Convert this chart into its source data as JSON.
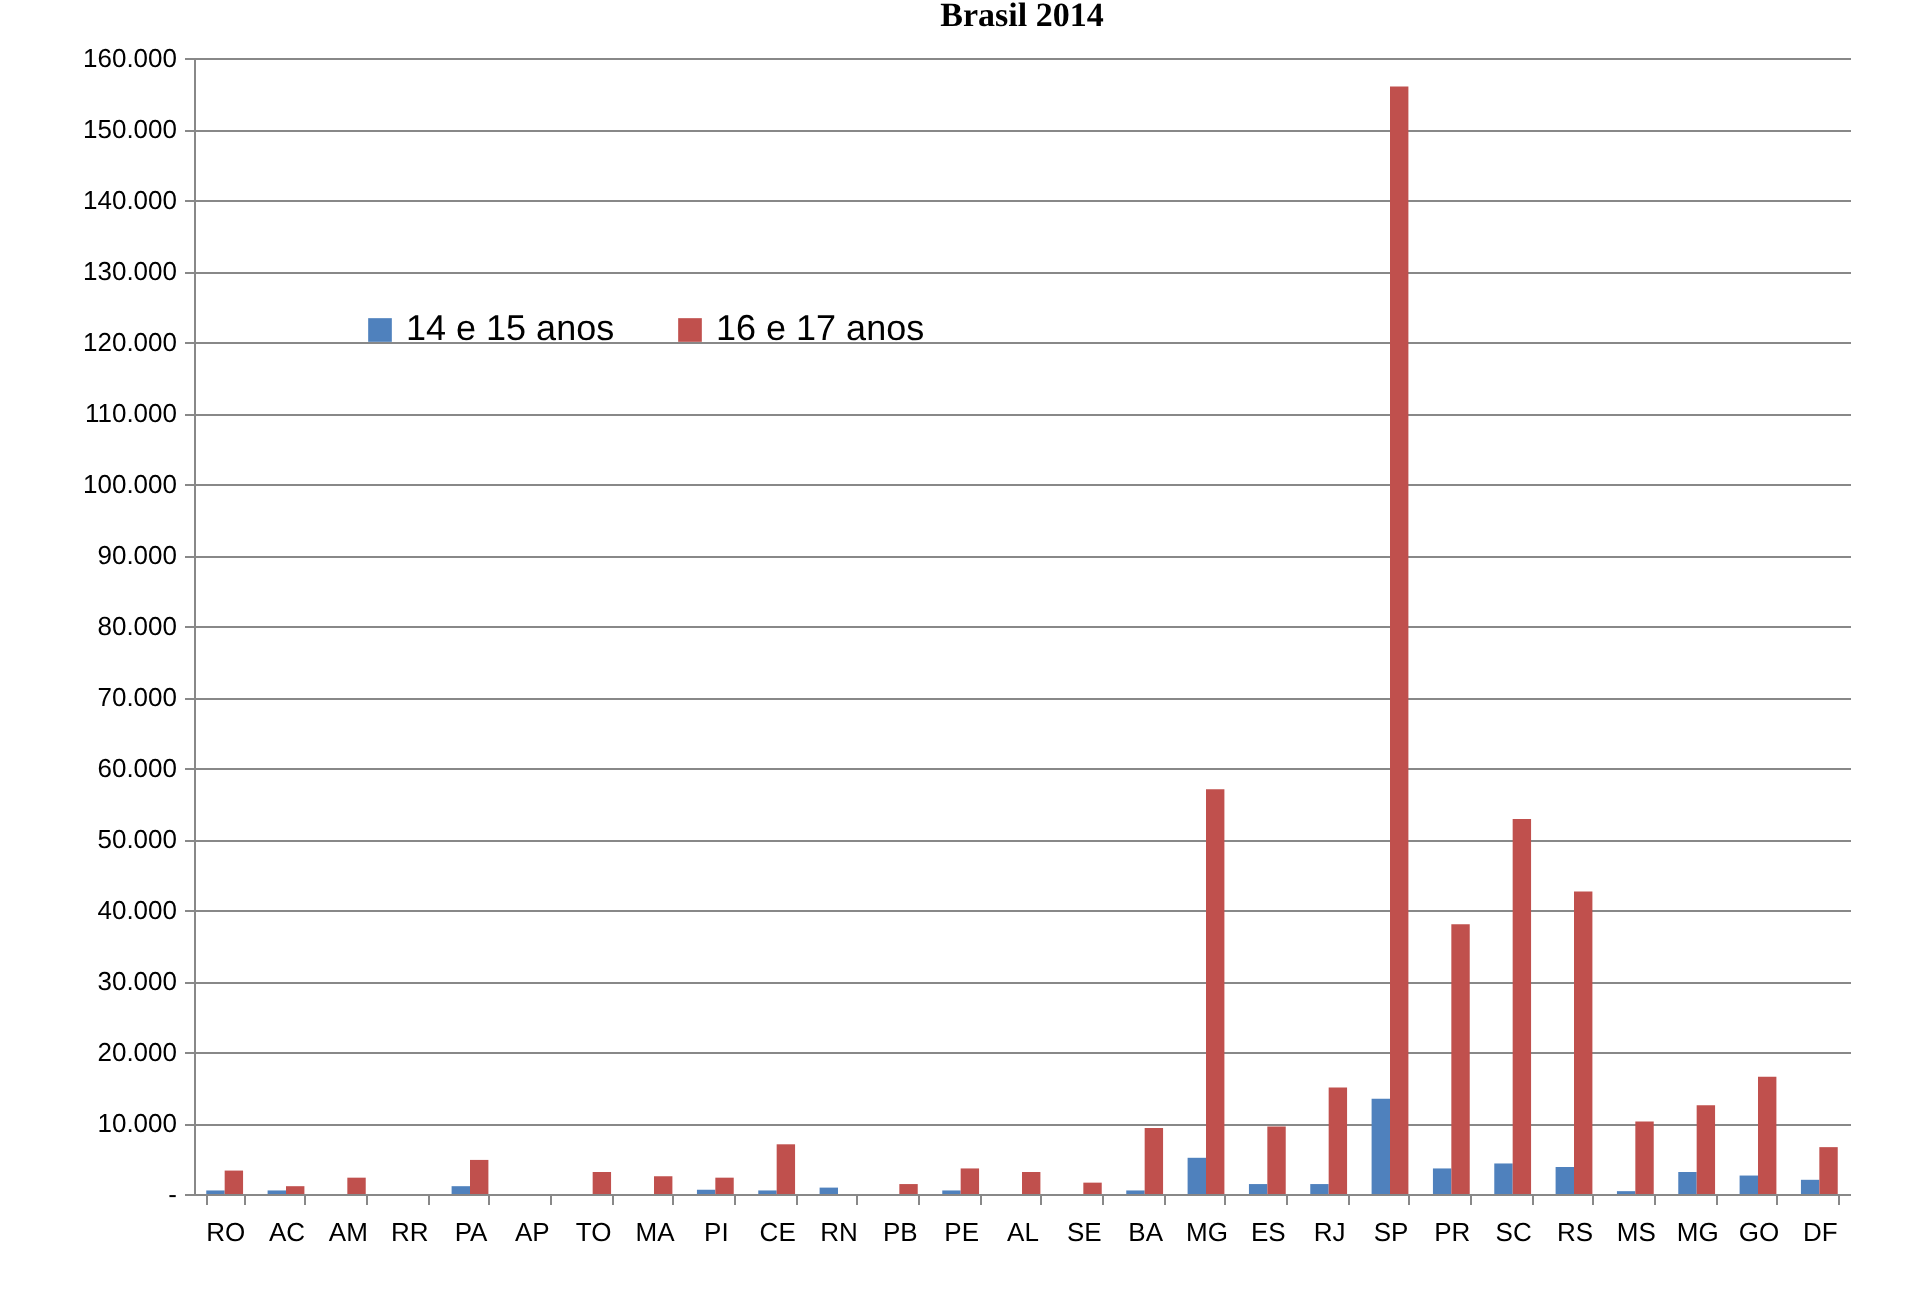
{
  "chart_data": {
    "type": "bar",
    "title": "Brasil 2014",
    "categories": [
      "RO",
      "AC",
      "AM",
      "RR",
      "PA",
      "AP",
      "TO",
      "MA",
      "PI",
      "CE",
      "RN",
      "PB",
      "PE",
      "AL",
      "SE",
      "BA",
      "MG",
      "ES",
      "RJ",
      "SP",
      "PR",
      "SC",
      "RS",
      "MS",
      "MG",
      "GO",
      "DF"
    ],
    "series": [
      {
        "name": "14 e 15 anos",
        "color": "#4f81bd",
        "values": [
          500,
          500,
          0,
          0,
          1100,
          0,
          0,
          0,
          600,
          500,
          900,
          0,
          500,
          0,
          0,
          500,
          5100,
          1400,
          1400,
          13400,
          3600,
          4300,
          3800,
          400,
          3100,
          2600,
          2000
        ]
      },
      {
        "name": "16 e 17 anos",
        "color": "#c0504d",
        "values": [
          3300,
          1100,
          2300,
          0,
          4800,
          0,
          3100,
          2500,
          2300,
          7000,
          0,
          1400,
          3600,
          3100,
          1600,
          9300,
          57000,
          9500,
          15000,
          156000,
          38000,
          52800,
          42600,
          10200,
          12500,
          16500,
          6600
        ]
      }
    ],
    "ylim": [
      0,
      160000
    ],
    "yticks": [
      {
        "value": 0,
        "label": "-"
      },
      {
        "value": 10000,
        "label": "10.000"
      },
      {
        "value": 20000,
        "label": "20.000"
      },
      {
        "value": 30000,
        "label": "30.000"
      },
      {
        "value": 40000,
        "label": "40.000"
      },
      {
        "value": 50000,
        "label": "50.000"
      },
      {
        "value": 60000,
        "label": "60.000"
      },
      {
        "value": 70000,
        "label": "70.000"
      },
      {
        "value": 80000,
        "label": "80.000"
      },
      {
        "value": 90000,
        "label": "90.000"
      },
      {
        "value": 100000,
        "label": "100.000"
      },
      {
        "value": 110000,
        "label": "110.000"
      },
      {
        "value": 120000,
        "label": "120.000"
      },
      {
        "value": 130000,
        "label": "130.000"
      },
      {
        "value": 140000,
        "label": "140.000"
      },
      {
        "value": 150000,
        "label": "150.000"
      },
      {
        "value": 160000,
        "label": "160.000"
      }
    ],
    "grid": "y",
    "legend": "top left"
  }
}
